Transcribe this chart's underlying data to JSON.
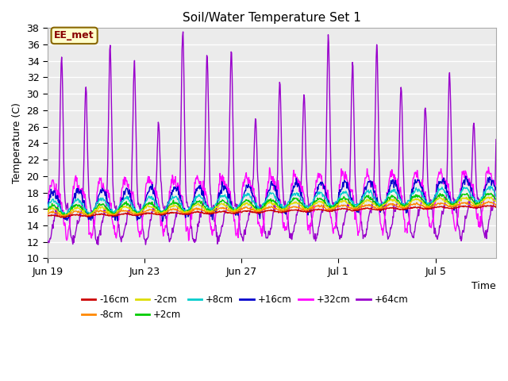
{
  "title": "Soil/Water Temperature Set 1",
  "xlabel": "Time",
  "ylabel": "Temperature (C)",
  "ylim": [
    10,
    38
  ],
  "yticks": [
    10,
    12,
    14,
    16,
    18,
    20,
    22,
    24,
    26,
    28,
    30,
    32,
    34,
    36,
    38
  ],
  "bg_color": "#ffffff",
  "plot_bg_color": "#ebebeb",
  "xtick_days": [
    0,
    4,
    8,
    12,
    16
  ],
  "xtick_labels": [
    "Jun 19",
    "Jun 23",
    "Jun 27",
    "Jul 1",
    "Jul 5"
  ],
  "n_days": 18.5,
  "colors": {
    "m16": "#cc0000",
    "m8": "#ff8800",
    "m2": "#dddd00",
    "p2": "#00cc00",
    "p8": "#00cccc",
    "p16": "#0000cc",
    "p32": "#ff00ff",
    "p64": "#9900cc"
  },
  "annotation_text": "EE_met",
  "annotation_bg": "#ffffcc",
  "annotation_border": "#886600",
  "grid_color": "#ffffff",
  "legend_labels": [
    "-16cm",
    "-8cm",
    "-2cm",
    "+2cm",
    "+8cm",
    "+16cm",
    "+32cm",
    "+64cm"
  ],
  "legend_colors": [
    "#cc0000",
    "#ff8800",
    "#dddd00",
    "#00cc00",
    "#00cccc",
    "#0000cc",
    "#ff00ff",
    "#9900cc"
  ]
}
